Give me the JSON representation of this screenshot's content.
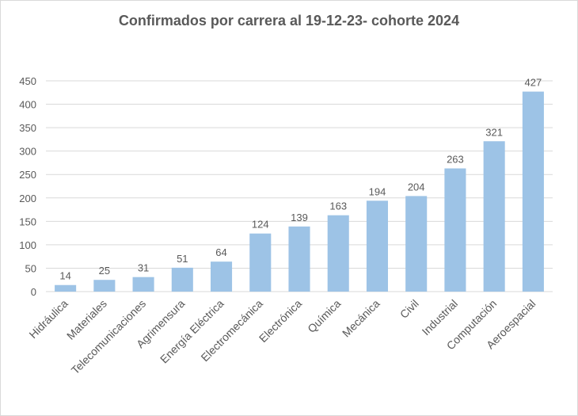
{
  "chart_data": {
    "type": "bar",
    "title": "Confirmados  por carrera al 19-12-23- cohorte 2024",
    "xlabel": "",
    "ylabel": "",
    "ylim": [
      0,
      450
    ],
    "yticks": [
      "0",
      "50",
      "100",
      "150",
      "200",
      "250",
      "300",
      "350",
      "400",
      "450"
    ],
    "grid": true,
    "legend": "none",
    "categories": [
      "Hidráulica",
      "Materiales",
      "Telecomunicaciones",
      "Agrimensura",
      "Energía Eléctrica",
      "Electromecánica",
      "Electrónica",
      "Química",
      "Mecánica",
      "Civil",
      "Industrial",
      "Computación",
      "Aeroespacial"
    ],
    "values": [
      14,
      25,
      31,
      51,
      64,
      124,
      139,
      163,
      194,
      204,
      263,
      321,
      427
    ],
    "colors": {
      "bar": "#9dc3e6",
      "grid": "#d9d9d9",
      "text": "#595959",
      "axis": "#d9d9d9"
    }
  }
}
